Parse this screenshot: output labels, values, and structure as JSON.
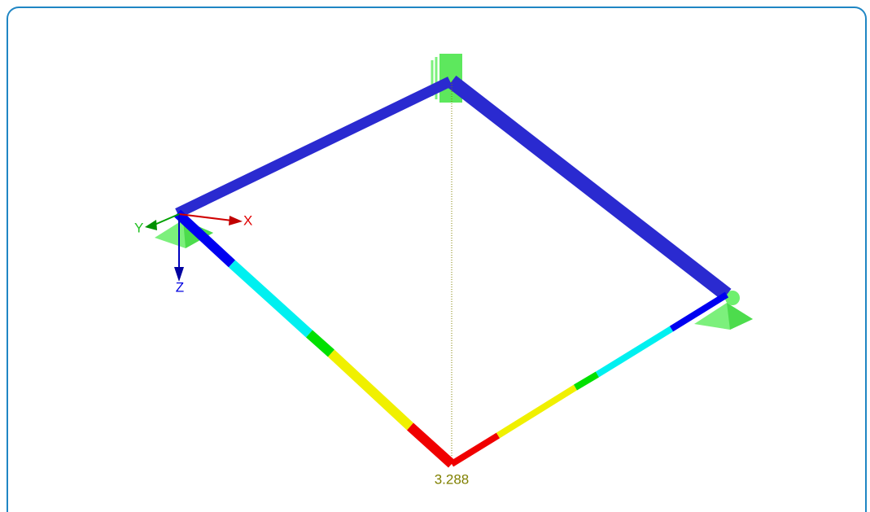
{
  "axes": {
    "x": "X",
    "y": "Y",
    "z": "Z"
  },
  "result_label": 3.288
}
